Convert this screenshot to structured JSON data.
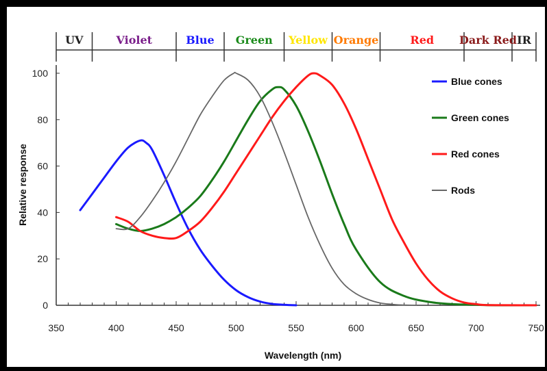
{
  "chart_data": {
    "type": "line",
    "xlabel": "Wavelength (nm)",
    "ylabel": "Relative response",
    "xlim": [
      350,
      750
    ],
    "ylim": [
      0,
      100
    ],
    "x_ticks": [
      350,
      400,
      450,
      500,
      550,
      600,
      650,
      700,
      750
    ],
    "y_ticks": [
      0,
      20,
      40,
      60,
      80,
      100
    ],
    "grid": false,
    "legend_position": "right",
    "color_bands": [
      {
        "label": "UV",
        "from": 350,
        "to": 380,
        "color": "#222222"
      },
      {
        "label": "Violet",
        "from": 380,
        "to": 450,
        "color": "#7a1e8a"
      },
      {
        "label": "Blue",
        "from": 450,
        "to": 490,
        "color": "#1a1aff"
      },
      {
        "label": "Green",
        "from": 490,
        "to": 540,
        "color": "#1a8a1a"
      },
      {
        "label": "Yellow",
        "from": 540,
        "to": 580,
        "color": "#ffe600"
      },
      {
        "label": "Orange",
        "from": 580,
        "to": 620,
        "color": "#ff7a00"
      },
      {
        "label": "Red",
        "from": 620,
        "to": 690,
        "color": "#ff1a1a"
      },
      {
        "label": "Dark Red",
        "from": 690,
        "to": 730,
        "color": "#8a1a1a"
      },
      {
        "label": "IR",
        "from": 730,
        "to": 750,
        "color": "#222222"
      }
    ],
    "series": [
      {
        "name": "Blue cones",
        "color": "#1a1aff",
        "x": [
          370,
          380,
          390,
          400,
          410,
          420,
          425,
          430,
          440,
          450,
          460,
          470,
          480,
          490,
          500,
          510,
          520,
          530,
          540,
          550
        ],
        "y": [
          41,
          48,
          55,
          62,
          68,
          71,
          70,
          67,
          56,
          44,
          33,
          24,
          17,
          11,
          6.5,
          3.5,
          1.6,
          0.6,
          0.2,
          0
        ]
      },
      {
        "name": "Green cones",
        "color": "#1a7a1a",
        "x": [
          400,
          410,
          420,
          430,
          440,
          450,
          460,
          470,
          480,
          490,
          500,
          510,
          520,
          530,
          535,
          540,
          550,
          560,
          570,
          580,
          590,
          600,
          620,
          640,
          660,
          680,
          700,
          720,
          750
        ],
        "y": [
          35,
          33,
          32,
          33,
          35,
          38,
          42,
          47,
          54,
          62,
          71,
          80,
          88,
          93,
          94,
          93,
          86,
          75,
          62,
          48,
          35,
          24,
          10,
          4,
          1.5,
          0.5,
          0.2,
          0,
          0
        ]
      },
      {
        "name": "Red cones",
        "color": "#ff1a1a",
        "x": [
          400,
          410,
          420,
          430,
          440,
          450,
          460,
          470,
          480,
          490,
          500,
          510,
          520,
          530,
          540,
          550,
          560,
          565,
          570,
          580,
          590,
          600,
          610,
          620,
          630,
          640,
          650,
          660,
          670,
          680,
          690,
          700,
          710,
          750
        ],
        "y": [
          38,
          36,
          32,
          30,
          29,
          29,
          32,
          36,
          42,
          49,
          57,
          65,
          73,
          81,
          88,
          94,
          99,
          100,
          99,
          95,
          87,
          76,
          63,
          50,
          37,
          27,
          18,
          11,
          6,
          3,
          1.2,
          0.5,
          0.1,
          0
        ]
      },
      {
        "name": "Rods",
        "color": "#666666",
        "x": [
          400,
          410,
          420,
          430,
          440,
          450,
          460,
          470,
          480,
          490,
          498,
          500,
          510,
          520,
          530,
          540,
          550,
          560,
          570,
          580,
          590,
          600,
          610,
          620,
          630,
          640,
          650
        ],
        "y": [
          33,
          33,
          38,
          45,
          53,
          62,
          72,
          82,
          90,
          97,
          100,
          100,
          97,
          90,
          79,
          66,
          52,
          38,
          26,
          16,
          9,
          5,
          2.5,
          1,
          0.4,
          0.1,
          0
        ]
      }
    ]
  }
}
